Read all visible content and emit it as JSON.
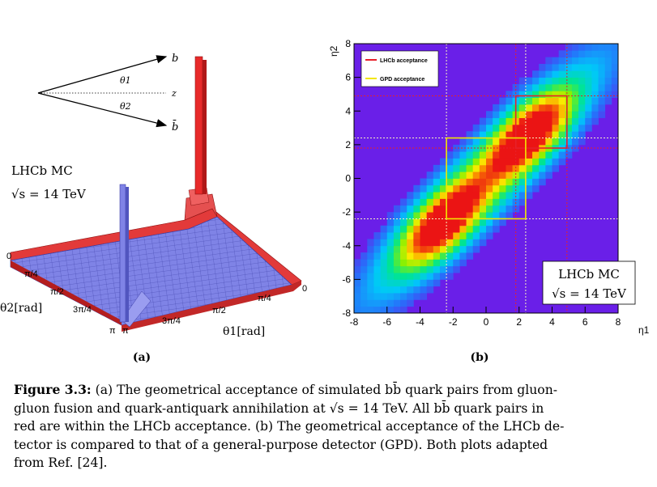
{
  "panel_a": {
    "label": "(a)",
    "sim_label": "LHCb MC",
    "energy_label": "√s = 14 TeV",
    "diagram": {
      "b": "b",
      "bbar": "b̄",
      "theta1": "θ1",
      "theta2": "θ2",
      "z": "z"
    },
    "theta1_axis": {
      "title": "θ1[rad]",
      "ticks": [
        "0",
        "π/4",
        "π/2",
        "3π/4",
        "π"
      ]
    },
    "theta2_axis": {
      "title": "θ2[rad]",
      "ticks": [
        "0",
        "π/4",
        "π/2",
        "3π/4",
        "π"
      ]
    },
    "colors": {
      "blue": "#7f83e6",
      "red": "#e23a3a"
    }
  },
  "chart_data": {
    "type": "heatmap",
    "label": "(b)",
    "xlabel": "η1",
    "ylabel": "η2",
    "xlim": [
      -8,
      8
    ],
    "ylim": [
      -8,
      8
    ],
    "x_ticks": [
      "-8",
      "-6",
      "-4",
      "-2",
      "0",
      "2",
      "4",
      "6",
      "8"
    ],
    "y_ticks": [
      "-8",
      "-6",
      "-4",
      "-2",
      "0",
      "2",
      "4",
      "6",
      "8"
    ],
    "legend": [
      {
        "name": "LHCb acceptance",
        "color": "#e8202a"
      },
      {
        "name": "GPD acceptance",
        "color": "#f2e600"
      }
    ],
    "legend_position": "top-left",
    "annotation_lines": [
      "LHCb MC",
      "√s = 14 TeV"
    ],
    "lhcb_box": {
      "x": [
        1.8,
        4.9
      ],
      "y": [
        1.8,
        4.9
      ]
    },
    "gpd_box": {
      "x": [
        -2.4,
        2.4
      ],
      "y": [
        -2.4,
        2.4
      ]
    },
    "peaks": [
      {
        "x": 2.6,
        "y": 2.6
      },
      {
        "x": -2.6,
        "y": -2.6
      }
    ],
    "background_color": "#6a1fe8"
  },
  "caption": {
    "label": "Figure 3.3:",
    "lines": [
      "(a) The geometrical acceptance of simulated bb̄ quark pairs from gluon-",
      "gluon fusion and quark-antiquark annihilation at √s = 14 TeV. All bb̄ quark pairs in",
      "red are within the LHCb acceptance. (b) The geometrical acceptance of the LHCb de-",
      "tector is compared to that of a general-purpose detector (GPD). Both plots adapted",
      "from Ref. [24]."
    ]
  }
}
